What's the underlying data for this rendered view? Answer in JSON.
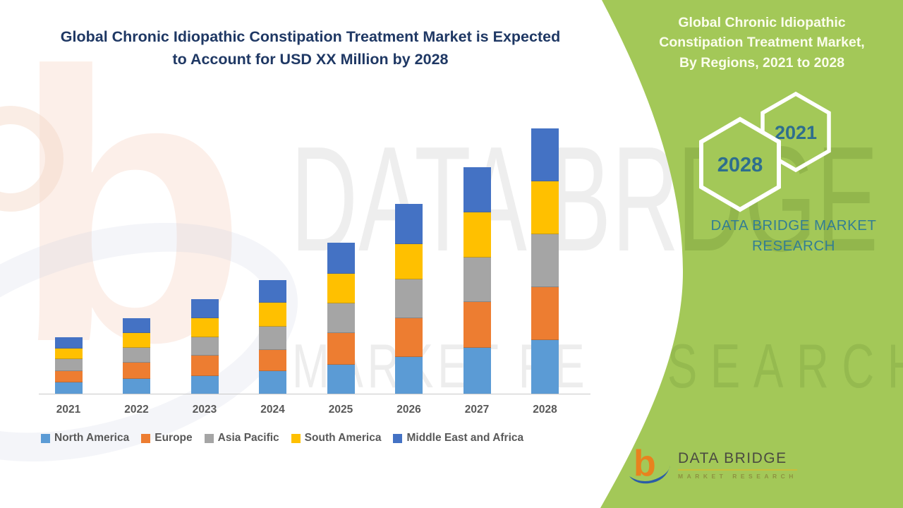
{
  "header": {
    "title_line1": "Global Chronic Idiopathic Constipation Treatment Market is Expected",
    "title_line2": "to Account for USD XX Million by 2028",
    "title_color": "#1F3864"
  },
  "side_panel": {
    "bg_color": "#A3C858",
    "title_line1": "Global Chronic Idiopathic",
    "title_line2": "Constipation Treatment Market,",
    "title_line3": "By Regions, 2021 to 2028",
    "hexagon_top_year": "2021",
    "hexagon_bottom_year": "2028",
    "hexagon_text_color": "#2E6E8E",
    "brand_line1": "DATA BRIDGE MARKET",
    "brand_line2": "RESEARCH",
    "brand_color": "#337E93"
  },
  "chart_data": {
    "type": "bar",
    "stacked": true,
    "title": "Global Chronic Idiopathic Constipation Treatment Market, By Regions, 2021 to 2028",
    "categories": [
      "2021",
      "2022",
      "2023",
      "2024",
      "2025",
      "2026",
      "2027",
      "2028"
    ],
    "series": [
      {
        "name": "North America",
        "color": "#5B9BD5",
        "values": [
          16,
          21,
          25,
          32,
          41,
          52,
          65,
          76
        ]
      },
      {
        "name": "Europe",
        "color": "#ED7D31",
        "values": [
          16,
          23,
          29,
          30,
          45,
          55,
          65,
          75
        ]
      },
      {
        "name": "Asia Pacific",
        "color": "#A5A5A5",
        "values": [
          17,
          21,
          26,
          33,
          42,
          55,
          63,
          75
        ]
      },
      {
        "name": "South America",
        "color": "#FFC000",
        "values": [
          15,
          21,
          27,
          34,
          42,
          50,
          64,
          75
        ]
      },
      {
        "name": "Middle East and Africa",
        "color": "#4472C4",
        "values": [
          16,
          21,
          27,
          32,
          44,
          57,
          64,
          75
        ]
      }
    ],
    "totals": [
      80,
      107,
      134,
      161,
      214,
      269,
      321,
      376
    ],
    "values_unit": "relative height (source chart has no labeled y-axis)",
    "xlabel": "",
    "ylabel": "",
    "grid": false,
    "legend_position": "bottom"
  },
  "watermark": {
    "monogram": "b",
    "text_top_white": "DATA BRI",
    "text_top_green": "DGE",
    "text_bottom_white": "MARKET RE",
    "text_bottom_green": "SEARCH"
  },
  "footer_logo": {
    "monogram": "b",
    "brand": "DATA BRIDGE",
    "tagline": "MARKET  RESEARCH"
  }
}
